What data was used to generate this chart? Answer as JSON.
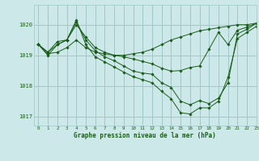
{
  "title": "Graphe pression niveau de la mer (hPa)",
  "bg_color": "#cce8e8",
  "line_color": "#1a5c1a",
  "grid_color": "#a0c8c8",
  "x_min": -0.5,
  "x_max": 23,
  "y_min": 1016.7,
  "y_max": 1020.65,
  "yticks": [
    1017,
    1018,
    1019,
    1020
  ],
  "xticks": [
    0,
    1,
    2,
    3,
    4,
    5,
    6,
    7,
    8,
    9,
    10,
    11,
    12,
    13,
    14,
    15,
    16,
    17,
    18,
    19,
    20,
    21,
    22,
    23
  ],
  "series": [
    [
      1019.35,
      1019.05,
      1019.1,
      1019.25,
      1019.5,
      1019.25,
      1019.1,
      1019.05,
      1019.0,
      1019.0,
      1019.05,
      1019.1,
      1019.2,
      1019.35,
      1019.5,
      1019.6,
      1019.7,
      1019.8,
      1019.85,
      1019.9,
      1019.95,
      1020.0,
      1020.0,
      1020.05
    ],
    [
      1019.35,
      1019.1,
      1019.35,
      1019.5,
      1020.0,
      1019.6,
      1019.25,
      1019.1,
      1019.0,
      1018.95,
      1018.88,
      1018.8,
      1018.72,
      1018.58,
      1018.48,
      1018.5,
      1018.6,
      1018.65,
      1019.2,
      1019.75,
      1019.35,
      1019.82,
      1019.92,
      1020.05
    ],
    [
      1019.35,
      1019.1,
      1019.45,
      1019.5,
      1020.1,
      1019.5,
      1019.15,
      1018.95,
      1018.82,
      1018.65,
      1018.48,
      1018.42,
      1018.38,
      1018.1,
      1017.95,
      1017.5,
      1017.38,
      1017.52,
      1017.42,
      1017.6,
      1018.1,
      1019.7,
      1019.85,
      1020.05
    ],
    [
      1019.35,
      1019.0,
      1019.35,
      1019.5,
      1020.15,
      1019.35,
      1018.95,
      1018.78,
      1018.62,
      1018.45,
      1018.3,
      1018.2,
      1018.1,
      1017.82,
      1017.58,
      1017.12,
      1017.08,
      1017.28,
      1017.28,
      1017.5,
      1018.28,
      1019.55,
      1019.75,
      1019.95
    ]
  ]
}
